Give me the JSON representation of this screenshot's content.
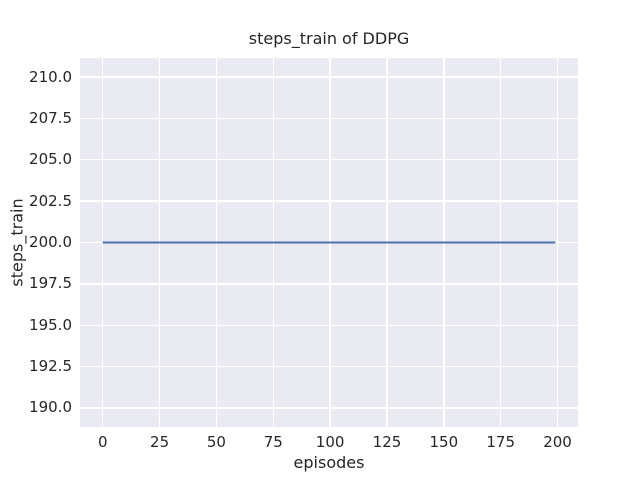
{
  "figure": {
    "title": "steps_train of DDPG",
    "xlabel": "episodes",
    "ylabel": "steps_train"
  },
  "chart_data": {
    "type": "line",
    "title": "steps_train of DDPG",
    "xlabel": "episodes",
    "ylabel": "steps_train",
    "xlim": [
      -10,
      209
    ],
    "ylim": [
      188.85,
      211.15
    ],
    "xticks": [
      0,
      25,
      50,
      75,
      100,
      125,
      150,
      175,
      200
    ],
    "xtick_labels": [
      "0",
      "25",
      "50",
      "75",
      "100",
      "125",
      "150",
      "175",
      "200"
    ],
    "yticks": [
      190.0,
      192.5,
      195.0,
      197.5,
      200.0,
      202.5,
      205.0,
      207.5,
      210.0
    ],
    "ytick_labels": [
      "190.0",
      "192.5",
      "195.0",
      "197.5",
      "200.0",
      "202.5",
      "205.0",
      "207.5",
      "210.0"
    ],
    "grid": true,
    "legend": "none",
    "series": [
      {
        "name": "steps_train",
        "color": "#4C72B0",
        "x": [
          0,
          199
        ],
        "values": [
          200,
          200
        ],
        "constant_value": 200
      }
    ],
    "colors": {
      "figure_bg": "#ffffff",
      "plot_bg": "#eaeaf2",
      "grid": "#ffffff",
      "text": "#262626",
      "line": "#4C72B0"
    }
  }
}
